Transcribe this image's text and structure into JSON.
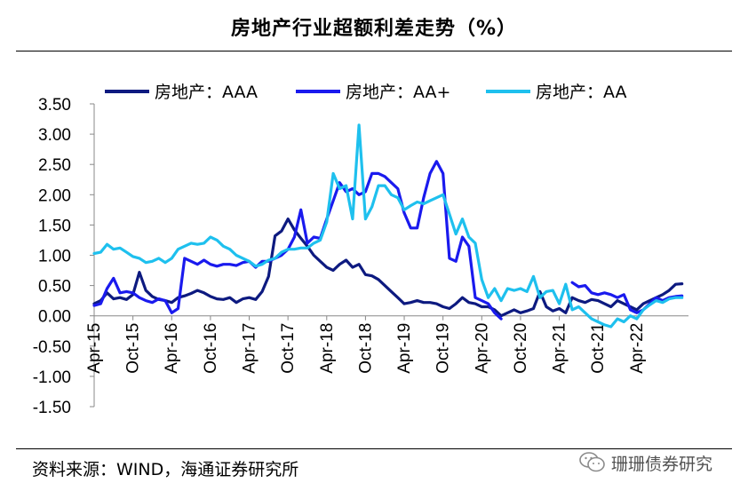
{
  "title": "房地产行业超额利差走势（%）",
  "source": "资料来源：WIND，海通证券研究所",
  "watermark": {
    "text": "珊珊债券研究",
    "icon": "wechat-icon"
  },
  "chart_data": {
    "type": "line",
    "title": "房地产行业超额利差走势（%）",
    "xlabel": "",
    "ylabel": "",
    "ylim": [
      -1.5,
      3.5
    ],
    "yticks": [
      -1.5,
      -1.0,
      -0.5,
      0.0,
      0.5,
      1.0,
      1.5,
      2.0,
      2.5,
      3.0,
      3.5
    ],
    "ytick_labels": [
      "-1.50",
      "-1.00",
      "-0.50",
      "0.00",
      "0.50",
      "1.00",
      "1.50",
      "2.00",
      "2.50",
      "3.00",
      "3.50"
    ],
    "xlim": [
      "2015-04",
      "2022-12"
    ],
    "xtick_labels": [
      "Apr-15",
      "Oct-15",
      "Apr-16",
      "Oct-16",
      "Apr-17",
      "Oct-17",
      "Apr-18",
      "Oct-18",
      "Apr-19",
      "Oct-19",
      "Apr-20",
      "Oct-20",
      "Apr-21",
      "Oct-21",
      "Apr-22"
    ],
    "grid": false,
    "legend_position": "top",
    "series": [
      {
        "name": "房地产：AAA",
        "color": "#0d1a80",
        "points": [
          [
            "2015-04",
            0.2
          ],
          [
            "2015-05",
            0.25
          ],
          [
            "2015-06",
            0.38
          ],
          [
            "2015-07",
            0.28
          ],
          [
            "2015-08",
            0.3
          ],
          [
            "2015-09",
            0.27
          ],
          [
            "2015-10",
            0.35
          ],
          [
            "2015-11",
            0.72
          ],
          [
            "2015-12",
            0.42
          ],
          [
            "2016-01",
            0.32
          ],
          [
            "2016-02",
            0.27
          ],
          [
            "2016-03",
            0.25
          ],
          [
            "2016-04",
            0.22
          ],
          [
            "2016-05",
            0.3
          ],
          [
            "2016-06",
            0.33
          ],
          [
            "2016-07",
            0.37
          ],
          [
            "2016-08",
            0.42
          ],
          [
            "2016-09",
            0.38
          ],
          [
            "2016-10",
            0.32
          ],
          [
            "2016-11",
            0.28
          ],
          [
            "2016-12",
            0.27
          ],
          [
            "2017-01",
            0.3
          ],
          [
            "2017-02",
            0.22
          ],
          [
            "2017-03",
            0.28
          ],
          [
            "2017-04",
            0.3
          ],
          [
            "2017-05",
            0.27
          ],
          [
            "2017-06",
            0.4
          ],
          [
            "2017-07",
            0.65
          ],
          [
            "2017-08",
            1.32
          ],
          [
            "2017-09",
            1.4
          ],
          [
            "2017-10",
            1.6
          ],
          [
            "2017-11",
            1.42
          ],
          [
            "2017-12",
            1.28
          ],
          [
            "2018-01",
            1.15
          ],
          [
            "2018-02",
            1.0
          ],
          [
            "2018-03",
            0.9
          ],
          [
            "2018-04",
            0.8
          ],
          [
            "2018-05",
            0.75
          ],
          [
            "2018-06",
            0.85
          ],
          [
            "2018-07",
            0.92
          ],
          [
            "2018-08",
            0.8
          ],
          [
            "2018-09",
            0.85
          ],
          [
            "2018-10",
            0.68
          ],
          [
            "2018-11",
            0.66
          ],
          [
            "2018-12",
            0.6
          ],
          [
            "2019-01",
            0.5
          ],
          [
            "2019-02",
            0.4
          ],
          [
            "2019-03",
            0.3
          ],
          [
            "2019-04",
            0.2
          ],
          [
            "2019-05",
            0.22
          ],
          [
            "2019-06",
            0.25
          ],
          [
            "2019-07",
            0.22
          ],
          [
            "2019-08",
            0.22
          ],
          [
            "2019-09",
            0.2
          ],
          [
            "2019-10",
            0.15
          ],
          [
            "2019-11",
            0.12
          ],
          [
            "2019-12",
            0.2
          ],
          [
            "2020-01",
            0.3
          ],
          [
            "2020-02",
            0.22
          ],
          [
            "2020-03",
            0.2
          ],
          [
            "2020-04",
            0.15
          ],
          [
            "2020-05",
            0.15
          ],
          [
            "2020-06",
            0.1
          ],
          [
            "2020-07",
            0.0
          ],
          [
            "2020-08",
            0.05
          ],
          [
            "2020-09",
            0.1
          ],
          [
            "2020-10",
            0.05
          ],
          [
            "2020-11",
            0.08
          ],
          [
            "2020-12",
            0.12
          ],
          [
            "2021-01",
            0.4
          ],
          [
            "2021-02",
            0.15
          ],
          [
            "2021-03",
            0.08
          ],
          [
            "2021-04",
            0.12
          ],
          [
            "2021-05",
            0.05
          ],
          [
            "2021-06",
            0.3
          ],
          [
            "2021-07",
            0.25
          ],
          [
            "2021-08",
            0.22
          ],
          [
            "2021-09",
            0.27
          ],
          [
            "2021-10",
            0.25
          ],
          [
            "2021-11",
            0.2
          ],
          [
            "2021-12",
            0.15
          ],
          [
            "2022-01",
            0.25
          ],
          [
            "2022-02",
            0.2
          ],
          [
            "2022-03",
            0.15
          ],
          [
            "2022-04",
            0.1
          ],
          [
            "2022-05",
            0.2
          ],
          [
            "2022-06",
            0.25
          ],
          [
            "2022-07",
            0.3
          ],
          [
            "2022-08",
            0.35
          ],
          [
            "2022-09",
            0.42
          ],
          [
            "2022-10",
            0.52
          ],
          [
            "2022-11",
            0.53
          ]
        ]
      },
      {
        "name": "房地产：AA+",
        "color": "#1a1aee",
        "points": [
          [
            "2015-04",
            0.17
          ],
          [
            "2015-05",
            0.2
          ],
          [
            "2015-06",
            0.45
          ],
          [
            "2015-07",
            0.62
          ],
          [
            "2015-08",
            0.38
          ],
          [
            "2015-09",
            0.4
          ],
          [
            "2015-10",
            0.38
          ],
          [
            "2015-11",
            0.3
          ],
          [
            "2015-12",
            0.25
          ],
          [
            "2016-01",
            0.22
          ],
          [
            "2016-02",
            0.28
          ],
          [
            "2016-03",
            0.25
          ],
          [
            "2016-04",
            0.05
          ],
          [
            "2016-05",
            0.12
          ],
          [
            "2016-06",
            0.95
          ],
          [
            "2016-07",
            0.9
          ],
          [
            "2016-08",
            0.85
          ],
          [
            "2016-09",
            0.92
          ],
          [
            "2016-10",
            0.85
          ],
          [
            "2016-11",
            0.82
          ],
          [
            "2016-12",
            0.85
          ],
          [
            "2017-01",
            0.85
          ],
          [
            "2017-02",
            0.83
          ],
          [
            "2017-03",
            0.88
          ],
          [
            "2017-04",
            0.9
          ],
          [
            "2017-05",
            0.8
          ],
          [
            "2017-06",
            0.9
          ],
          [
            "2017-07",
            0.9
          ],
          [
            "2017-08",
            0.95
          ],
          [
            "2017-09",
            1.0
          ],
          [
            "2017-10",
            1.1
          ],
          [
            "2017-11",
            1.3
          ],
          [
            "2017-12",
            1.75
          ],
          [
            "2018-01",
            1.2
          ],
          [
            "2018-02",
            1.3
          ],
          [
            "2018-03",
            1.28
          ],
          [
            "2018-04",
            1.6
          ],
          [
            "2018-05",
            1.9
          ],
          [
            "2018-06",
            2.2
          ],
          [
            "2018-07",
            2.05
          ],
          [
            "2018-08",
            2.1
          ],
          [
            "2018-09",
            2.0
          ],
          [
            "2018-10",
            2.05
          ],
          [
            "2018-11",
            2.35
          ],
          [
            "2018-12",
            2.35
          ],
          [
            "2019-01",
            2.3
          ],
          [
            "2019-02",
            2.2
          ],
          [
            "2019-03",
            2.1
          ],
          [
            "2019-04",
            1.7
          ],
          [
            "2019-05",
            1.45
          ],
          [
            "2019-06",
            1.45
          ],
          [
            "2019-07",
            1.95
          ],
          [
            "2019-08",
            2.35
          ],
          [
            "2019-09",
            2.55
          ],
          [
            "2019-10",
            2.35
          ],
          [
            "2019-11",
            0.95
          ],
          [
            "2019-12",
            0.9
          ],
          [
            "2020-01",
            1.3
          ],
          [
            "2020-02",
            1.15
          ],
          [
            "2020-03",
            0.3
          ],
          [
            "2020-04",
            0.25
          ],
          [
            "2020-05",
            0.2
          ],
          [
            "2020-06",
            0.05
          ],
          [
            "2020-07",
            -0.05
          ],
          [
            "2021-06",
            0.55
          ],
          [
            "2021-07",
            0.48
          ],
          [
            "2021-08",
            0.5
          ],
          [
            "2021-09",
            0.38
          ],
          [
            "2021-10",
            0.35
          ],
          [
            "2021-11",
            0.38
          ],
          [
            "2021-12",
            0.35
          ],
          [
            "2022-01",
            0.3
          ],
          [
            "2022-02",
            0.35
          ],
          [
            "2022-03",
            0.1
          ],
          [
            "2022-04",
            0.05
          ],
          [
            "2022-05",
            0.1
          ],
          [
            "2022-06",
            0.2
          ],
          [
            "2022-07",
            0.3
          ],
          [
            "2022-08",
            0.25
          ],
          [
            "2022-09",
            0.3
          ],
          [
            "2022-10",
            0.32
          ],
          [
            "2022-11",
            0.33
          ]
        ]
      },
      {
        "name": "房地产：AA",
        "color": "#1ec0ee",
        "points": [
          [
            "2015-04",
            1.03
          ],
          [
            "2015-05",
            1.05
          ],
          [
            "2015-06",
            1.18
          ],
          [
            "2015-07",
            1.1
          ],
          [
            "2015-08",
            1.12
          ],
          [
            "2015-09",
            1.05
          ],
          [
            "2015-10",
            0.98
          ],
          [
            "2015-11",
            0.95
          ],
          [
            "2015-12",
            0.88
          ],
          [
            "2016-01",
            0.9
          ],
          [
            "2016-02",
            0.95
          ],
          [
            "2016-03",
            0.88
          ],
          [
            "2016-04",
            0.95
          ],
          [
            "2016-05",
            1.1
          ],
          [
            "2016-06",
            1.15
          ],
          [
            "2016-07",
            1.2
          ],
          [
            "2016-08",
            1.18
          ],
          [
            "2016-09",
            1.2
          ],
          [
            "2016-10",
            1.3
          ],
          [
            "2016-11",
            1.25
          ],
          [
            "2016-12",
            1.15
          ],
          [
            "2017-01",
            1.1
          ],
          [
            "2017-02",
            1.0
          ],
          [
            "2017-03",
            0.95
          ],
          [
            "2017-04",
            0.9
          ],
          [
            "2017-05",
            0.82
          ],
          [
            "2017-06",
            0.85
          ],
          [
            "2017-07",
            0.92
          ],
          [
            "2017-08",
            0.95
          ],
          [
            "2017-09",
            1.05
          ],
          [
            "2017-10",
            1.1
          ],
          [
            "2017-11",
            1.1
          ],
          [
            "2017-12",
            1.12
          ],
          [
            "2018-01",
            1.12
          ],
          [
            "2018-02",
            1.2
          ],
          [
            "2018-03",
            1.25
          ],
          [
            "2018-04",
            1.55
          ],
          [
            "2018-05",
            2.35
          ],
          [
            "2018-06",
            2.1
          ],
          [
            "2018-07",
            2.15
          ],
          [
            "2018-08",
            1.6
          ],
          [
            "2018-09",
            3.15
          ],
          [
            "2018-10",
            1.6
          ],
          [
            "2018-11",
            1.8
          ],
          [
            "2018-12",
            2.15
          ],
          [
            "2019-01",
            2.15
          ],
          [
            "2019-02",
            2.0
          ],
          [
            "2019-03",
            1.95
          ],
          [
            "2019-04",
            1.75
          ],
          [
            "2019-05",
            1.82
          ],
          [
            "2019-06",
            1.88
          ],
          [
            "2019-07",
            1.85
          ],
          [
            "2019-08",
            1.9
          ],
          [
            "2019-09",
            1.95
          ],
          [
            "2019-10",
            2.0
          ],
          [
            "2019-11",
            1.68
          ],
          [
            "2019-12",
            1.35
          ],
          [
            "2020-01",
            1.6
          ],
          [
            "2020-02",
            1.3
          ],
          [
            "2020-03",
            1.2
          ],
          [
            "2020-04",
            0.6
          ],
          [
            "2020-05",
            0.3
          ],
          [
            "2020-06",
            0.45
          ],
          [
            "2020-07",
            0.25
          ],
          [
            "2020-08",
            0.45
          ],
          [
            "2020-09",
            0.42
          ],
          [
            "2020-10",
            0.45
          ],
          [
            "2020-11",
            0.4
          ],
          [
            "2020-12",
            0.65
          ],
          [
            "2021-01",
            0.3
          ],
          [
            "2021-02",
            0.4
          ],
          [
            "2021-03",
            0.42
          ],
          [
            "2021-04",
            0.2
          ],
          [
            "2021-05",
            0.52
          ],
          [
            "2021-06",
            0.1
          ],
          [
            "2021-07",
            0.15
          ],
          [
            "2021-08",
            0.05
          ],
          [
            "2021-09",
            -0.05
          ],
          [
            "2021-10",
            -0.1
          ],
          [
            "2021-11",
            -0.15
          ],
          [
            "2021-12",
            -0.18
          ],
          [
            "2022-01",
            -0.05
          ],
          [
            "2022-02",
            -0.1
          ],
          [
            "2022-03",
            0.0
          ],
          [
            "2022-04",
            -0.05
          ],
          [
            "2022-05",
            0.1
          ],
          [
            "2022-06",
            0.18
          ],
          [
            "2022-07",
            0.25
          ],
          [
            "2022-08",
            0.22
          ],
          [
            "2022-09",
            0.28
          ],
          [
            "2022-10",
            0.3
          ],
          [
            "2022-11",
            0.3
          ]
        ]
      }
    ]
  }
}
